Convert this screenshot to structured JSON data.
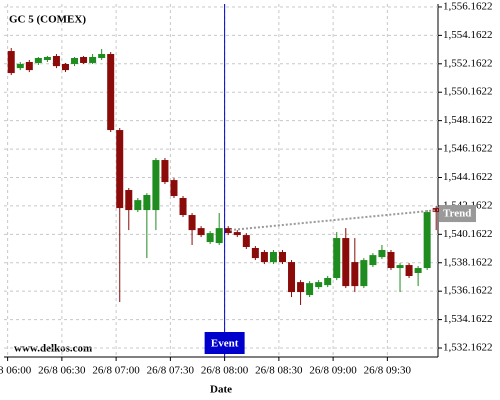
{
  "chart_data": {
    "type": "candlestick",
    "title": "GC 5 (COMEX)",
    "xlabel": "Date",
    "watermark": "www.delkos.com",
    "x": [
      362,
      367,
      372,
      377,
      382,
      387,
      392,
      397,
      402,
      407,
      412,
      417,
      422,
      427,
      432,
      437,
      442,
      447,
      452,
      457,
      462,
      467,
      472,
      477,
      482,
      487,
      492,
      497,
      502,
      507,
      512,
      517,
      522,
      527,
      532,
      537,
      542,
      547,
      552,
      557,
      562,
      567,
      572,
      577,
      582,
      587,
      592,
      597
    ],
    "open": [
      1553.06,
      1551.86,
      1552.29,
      1552.22,
      1552.43,
      1552.71,
      1552.15,
      1552.15,
      1552.64,
      1552.22,
      1552.57,
      1552.85,
      1547.5,
      1543.28,
      1541.87,
      1541.87,
      1541.87,
      1545.39,
      1543.98,
      1542.72,
      1541.52,
      1540.6,
      1539.62,
      1539.55,
      1540.6,
      1540.32,
      1540.11,
      1539.2,
      1538.92,
      1538.21,
      1538.92,
      1538.21,
      1536.8,
      1535.89,
      1536.45,
      1536.59,
      1537.09,
      1539.9,
      1538.21,
      1536.52,
      1538.0,
      1538.56,
      1538.92,
      1537.79,
      1538.0,
      1537.44,
      1537.79,
      1542.01
    ],
    "high": [
      1553.27,
      1552.29,
      1552.43,
      1552.64,
      1552.71,
      1552.85,
      1552.22,
      1552.64,
      1552.71,
      1552.85,
      1553.2,
      1552.99,
      1547.64,
      1543.42,
      1542.72,
      1543.06,
      1545.53,
      1545.53,
      1544.12,
      1542.86,
      1541.66,
      1540.74,
      1540.39,
      1541.66,
      1540.74,
      1540.46,
      1540.25,
      1539.34,
      1539.06,
      1539.06,
      1539.06,
      1538.35,
      1536.94,
      1536.87,
      1536.94,
      1537.23,
      1540.32,
      1540.6,
      1539.9,
      1538.49,
      1538.84,
      1539.41,
      1539.06,
      1538.14,
      1538.14,
      1537.93,
      1541.87,
      1542.15
    ],
    "low": [
      1551.37,
      1551.72,
      1551.58,
      1552.08,
      1552.29,
      1551.86,
      1551.58,
      1552.0,
      1552.15,
      1552.15,
      1552.43,
      1547.36,
      1535.4,
      1540.46,
      1541.73,
      1538.49,
      1540.46,
      1543.7,
      1542.72,
      1541.38,
      1539.41,
      1539.97,
      1539.48,
      1539.41,
      1540.11,
      1539.97,
      1539.13,
      1538.35,
      1538.07,
      1538.07,
      1538.07,
      1535.75,
      1535.19,
      1535.75,
      1536.31,
      1536.45,
      1536.94,
      1536.38,
      1536.1,
      1536.38,
      1537.86,
      1538.42,
      1537.65,
      1536.1,
      1537.09,
      1536.52,
      1537.65,
      1540.46
    ],
    "close": [
      1551.51,
      1552.15,
      1551.72,
      1552.57,
      1552.64,
      1552.0,
      1551.72,
      1552.57,
      1552.22,
      1552.64,
      1552.85,
      1547.5,
      1542.01,
      1541.87,
      1542.57,
      1542.93,
      1545.39,
      1543.84,
      1542.86,
      1541.52,
      1540.46,
      1540.11,
      1540.25,
      1540.6,
      1540.25,
      1540.11,
      1539.27,
      1538.49,
      1538.21,
      1538.92,
      1538.21,
      1536.1,
      1536.1,
      1536.73,
      1536.8,
      1537.09,
      1539.9,
      1536.52,
      1536.52,
      1538.35,
      1538.7,
      1539.06,
      1537.79,
      1538.0,
      1537.23,
      1537.79,
      1541.73,
      1541.73
    ],
    "up_color": "#1f8c1f",
    "down_color": "#8b0a0a",
    "xlim": [
      358,
      598
    ],
    "ylim": [
      1531.53,
      1556.37
    ],
    "xticks": [
      {
        "value": 360,
        "label": "26/8 06:00"
      },
      {
        "value": 390,
        "label": "26/8 06:30"
      },
      {
        "value": 420,
        "label": "26/8 07:00"
      },
      {
        "value": 450,
        "label": "26/8 07:30"
      },
      {
        "value": 480,
        "label": "26/8 08:00"
      },
      {
        "value": 510,
        "label": "26/8 08:30"
      },
      {
        "value": 540,
        "label": "26/8 09:00"
      },
      {
        "value": 570,
        "label": "26/8 09:30"
      }
    ],
    "yticks": [
      {
        "value": 1532.1622,
        "label": "1,532.1622"
      },
      {
        "value": 1534.1622,
        "label": "1,534.1622"
      },
      {
        "value": 1536.1622,
        "label": "1,536.1622"
      },
      {
        "value": 1538.1622,
        "label": "1,538.1622"
      },
      {
        "value": 1540.1622,
        "label": "1,540.1622"
      },
      {
        "value": 1542.1622,
        "label": "1,542.1622"
      },
      {
        "value": 1544.1622,
        "label": "1,544.1622"
      },
      {
        "value": 1546.1622,
        "label": "1,546.1622"
      },
      {
        "value": 1548.1622,
        "label": "1,548.1622"
      },
      {
        "value": 1550.1622,
        "label": "1,550.1622"
      },
      {
        "value": 1552.1622,
        "label": "1,552.1622"
      },
      {
        "value": 1554.1622,
        "label": "1,554.1622"
      },
      {
        "value": 1556.1622,
        "label": "1,556.1622"
      }
    ],
    "grid": true,
    "event": {
      "x": 480,
      "label": "Event",
      "color": "#0000cc"
    },
    "trend": {
      "x": [
        483,
        598
      ],
      "y": [
        1540.46,
        1541.87
      ],
      "label": "Trend",
      "color": "#999999"
    }
  }
}
